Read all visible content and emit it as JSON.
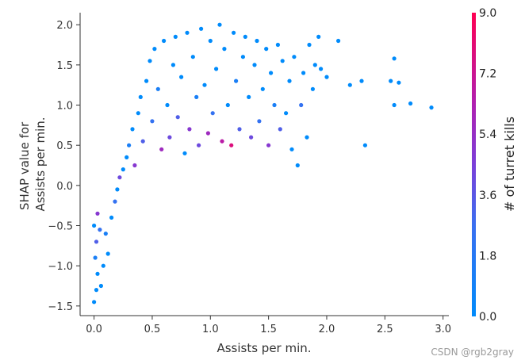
{
  "chart_data": {
    "type": "scatter",
    "xlabel": "Assists per min.",
    "ylabel_lines": [
      "SHAP value for",
      "Assists per min."
    ],
    "xlim": [
      -0.12,
      3.05
    ],
    "ylim": [
      -1.62,
      2.15
    ],
    "x_ticks": [
      0.0,
      0.5,
      1.0,
      1.5,
      2.0,
      2.5,
      3.0
    ],
    "x_tick_labels": [
      "0.0",
      "0.5",
      "1.0",
      "1.5",
      "2.0",
      "2.5",
      "3.0"
    ],
    "y_ticks": [
      -1.5,
      -1.0,
      -0.5,
      0.0,
      0.5,
      1.0,
      1.5,
      2.0
    ],
    "y_tick_labels": [
      "−1.5",
      "−1.0",
      "−0.5",
      "0.0",
      "0.5",
      "1.0",
      "1.5",
      "2.0"
    ],
    "grid": false,
    "colorbar": {
      "title": "# of turret kills",
      "range": [
        0.0,
        9.0
      ],
      "ticks": [
        0.0,
        1.8,
        3.6,
        5.4,
        7.2,
        9.0
      ],
      "tick_labels": [
        "0.0",
        "1.8",
        "3.6",
        "5.4",
        "7.2",
        "9.0"
      ],
      "colors": [
        "#008bfb",
        "#3a6ff0",
        "#7b3fd9",
        "#b01fb0",
        "#ff0052"
      ]
    },
    "color_feature": "# of turret kills",
    "point_color": "#008bfb",
    "points": [
      {
        "x": 0.0,
        "y": -1.45,
        "c": 0
      },
      {
        "x": 0.02,
        "y": -1.3,
        "c": 0
      },
      {
        "x": 0.03,
        "y": -1.1,
        "c": 0
      },
      {
        "x": 0.01,
        "y": -0.9,
        "c": 1
      },
      {
        "x": 0.02,
        "y": -0.7,
        "c": 3
      },
      {
        "x": 0.0,
        "y": -0.5,
        "c": 0
      },
      {
        "x": 0.03,
        "y": -0.35,
        "c": 5
      },
      {
        "x": 0.05,
        "y": -0.55,
        "c": 2
      },
      {
        "x": 0.06,
        "y": -1.25,
        "c": 0
      },
      {
        "x": 0.08,
        "y": -1.0,
        "c": 0
      },
      {
        "x": 0.1,
        "y": -0.6,
        "c": 1
      },
      {
        "x": 0.12,
        "y": -0.85,
        "c": 0
      },
      {
        "x": 0.15,
        "y": -0.4,
        "c": 0
      },
      {
        "x": 0.18,
        "y": -0.2,
        "c": 2
      },
      {
        "x": 0.2,
        "y": -0.05,
        "c": 0
      },
      {
        "x": 0.22,
        "y": 0.1,
        "c": 4
      },
      {
        "x": 0.25,
        "y": 0.2,
        "c": 0
      },
      {
        "x": 0.28,
        "y": 0.35,
        "c": 0
      },
      {
        "x": 0.3,
        "y": 0.5,
        "c": 1
      },
      {
        "x": 0.33,
        "y": 0.7,
        "c": 0
      },
      {
        "x": 0.35,
        "y": 0.25,
        "c": 5
      },
      {
        "x": 0.38,
        "y": 0.9,
        "c": 0
      },
      {
        "x": 0.4,
        "y": 1.1,
        "c": 0
      },
      {
        "x": 0.42,
        "y": 0.55,
        "c": 3
      },
      {
        "x": 0.45,
        "y": 1.3,
        "c": 0
      },
      {
        "x": 0.48,
        "y": 1.55,
        "c": 0
      },
      {
        "x": 0.5,
        "y": 0.8,
        "c": 2
      },
      {
        "x": 0.52,
        "y": 1.7,
        "c": 0
      },
      {
        "x": 0.55,
        "y": 1.2,
        "c": 1
      },
      {
        "x": 0.58,
        "y": 0.45,
        "c": 6
      },
      {
        "x": 0.6,
        "y": 1.8,
        "c": 0
      },
      {
        "x": 0.63,
        "y": 1.0,
        "c": 0
      },
      {
        "x": 0.65,
        "y": 0.6,
        "c": 4
      },
      {
        "x": 0.68,
        "y": 1.5,
        "c": 0
      },
      {
        "x": 0.7,
        "y": 1.85,
        "c": 0
      },
      {
        "x": 0.72,
        "y": 0.85,
        "c": 3
      },
      {
        "x": 0.75,
        "y": 1.35,
        "c": 0
      },
      {
        "x": 0.78,
        "y": 0.4,
        "c": 0
      },
      {
        "x": 0.8,
        "y": 1.9,
        "c": 0
      },
      {
        "x": 0.82,
        "y": 0.7,
        "c": 5
      },
      {
        "x": 0.85,
        "y": 1.6,
        "c": 0
      },
      {
        "x": 0.88,
        "y": 1.1,
        "c": 1
      },
      {
        "x": 0.9,
        "y": 0.5,
        "c": 4
      },
      {
        "x": 0.92,
        "y": 1.95,
        "c": 0
      },
      {
        "x": 0.95,
        "y": 1.25,
        "c": 0
      },
      {
        "x": 0.98,
        "y": 0.65,
        "c": 6
      },
      {
        "x": 1.0,
        "y": 1.8,
        "c": 0
      },
      {
        "x": 1.02,
        "y": 0.9,
        "c": 2
      },
      {
        "x": 1.05,
        "y": 1.45,
        "c": 0
      },
      {
        "x": 1.08,
        "y": 2.0,
        "c": 0
      },
      {
        "x": 1.1,
        "y": 0.55,
        "c": 7
      },
      {
        "x": 1.12,
        "y": 1.7,
        "c": 0
      },
      {
        "x": 1.15,
        "y": 1.0,
        "c": 0
      },
      {
        "x": 1.18,
        "y": 0.5,
        "c": 8
      },
      {
        "x": 1.2,
        "y": 1.9,
        "c": 0
      },
      {
        "x": 1.22,
        "y": 1.3,
        "c": 1
      },
      {
        "x": 1.25,
        "y": 0.7,
        "c": 3
      },
      {
        "x": 1.28,
        "y": 1.6,
        "c": 0
      },
      {
        "x": 1.3,
        "y": 1.85,
        "c": 0
      },
      {
        "x": 1.33,
        "y": 1.1,
        "c": 0
      },
      {
        "x": 1.35,
        "y": 0.6,
        "c": 4
      },
      {
        "x": 1.38,
        "y": 1.5,
        "c": 0
      },
      {
        "x": 1.4,
        "y": 1.8,
        "c": 0
      },
      {
        "x": 1.42,
        "y": 0.8,
        "c": 2
      },
      {
        "x": 1.45,
        "y": 1.2,
        "c": 0
      },
      {
        "x": 1.48,
        "y": 1.7,
        "c": 0
      },
      {
        "x": 1.5,
        "y": 0.5,
        "c": 5
      },
      {
        "x": 1.52,
        "y": 1.4,
        "c": 0
      },
      {
        "x": 1.55,
        "y": 1.0,
        "c": 1
      },
      {
        "x": 1.58,
        "y": 1.75,
        "c": 0
      },
      {
        "x": 1.6,
        "y": 0.7,
        "c": 3
      },
      {
        "x": 1.62,
        "y": 1.55,
        "c": 0
      },
      {
        "x": 1.65,
        "y": 0.9,
        "c": 0
      },
      {
        "x": 1.68,
        "y": 1.3,
        "c": 0
      },
      {
        "x": 1.7,
        "y": 0.45,
        "c": 0
      },
      {
        "x": 1.72,
        "y": 1.6,
        "c": 0
      },
      {
        "x": 1.75,
        "y": 0.25,
        "c": 0
      },
      {
        "x": 1.78,
        "y": 1.0,
        "c": 2
      },
      {
        "x": 1.8,
        "y": 1.4,
        "c": 0
      },
      {
        "x": 1.83,
        "y": 0.6,
        "c": 0
      },
      {
        "x": 1.85,
        "y": 1.75,
        "c": 0
      },
      {
        "x": 1.88,
        "y": 1.2,
        "c": 0
      },
      {
        "x": 1.9,
        "y": 1.5,
        "c": 0
      },
      {
        "x": 1.93,
        "y": 1.85,
        "c": 0
      },
      {
        "x": 1.95,
        "y": 1.45,
        "c": 0
      },
      {
        "x": 2.0,
        "y": 1.35,
        "c": 0
      },
      {
        "x": 2.1,
        "y": 1.8,
        "c": 0
      },
      {
        "x": 2.2,
        "y": 1.25,
        "c": 0
      },
      {
        "x": 2.3,
        "y": 1.3,
        "c": 0
      },
      {
        "x": 2.33,
        "y": 0.5,
        "c": 0
      },
      {
        "x": 2.55,
        "y": 1.3,
        "c": 0
      },
      {
        "x": 2.58,
        "y": 1.58,
        "c": 0
      },
      {
        "x": 2.58,
        "y": 1.0,
        "c": 0
      },
      {
        "x": 2.62,
        "y": 1.28,
        "c": 0
      },
      {
        "x": 2.72,
        "y": 1.02,
        "c": 0
      },
      {
        "x": 2.9,
        "y": 0.97,
        "c": 0
      }
    ]
  },
  "watermark": "CSDN @rgb2gray"
}
